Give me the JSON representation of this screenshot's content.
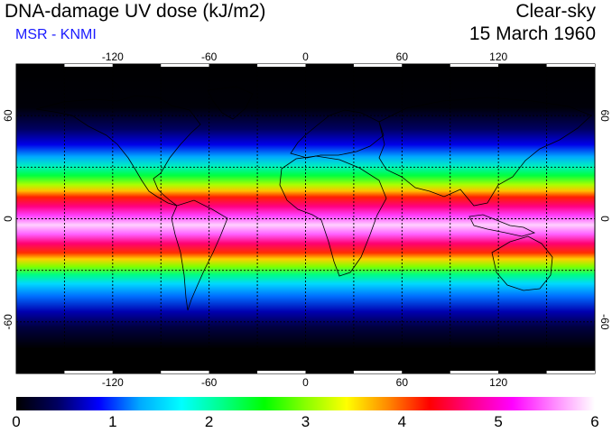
{
  "header": {
    "title": "DNA-damage UV dose (kJ/m2)",
    "subtitle": "MSR - KNMI",
    "sky_condition": "Clear-sky",
    "date": "15 March 1960"
  },
  "colors": {
    "subtitle": "#1a1aff",
    "ocean_background": "#000000",
    "coastline": "#000000",
    "grid": "#000000"
  },
  "map": {
    "projection": "equirectangular",
    "lon_range": [
      -180,
      180
    ],
    "lat_range": [
      -90,
      90
    ],
    "grid": "dashed",
    "lon_ticks": [
      "-120",
      "-60",
      "0",
      "60",
      "120"
    ],
    "lat_ticks": [
      "60",
      "0",
      "-60"
    ]
  },
  "colorbar": {
    "range": [
      0,
      6
    ],
    "labels": [
      "0",
      "1",
      "2",
      "3",
      "4",
      "5",
      "6"
    ],
    "palette": [
      "#000000",
      "#000060",
      "#0000ff",
      "#00aaff",
      "#00ffff",
      "#00ff88",
      "#00ff00",
      "#88ff00",
      "#ffff00",
      "#ff8800",
      "#ff0000",
      "#ff0088",
      "#ff00ff",
      "#ff88ff",
      "#ffffff"
    ]
  }
}
